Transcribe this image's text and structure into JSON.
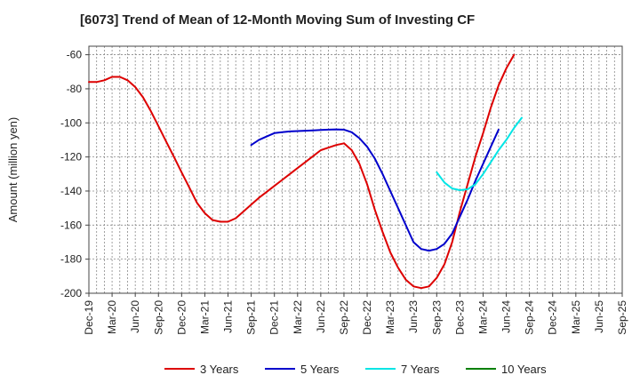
{
  "chart_data": {
    "type": "line",
    "title": "[6073]  Trend of Mean of 12-Month Moving Sum of Investing CF",
    "ylabel": "Amount (million yen)",
    "xlabel": "",
    "ylim": [
      -200,
      -55
    ],
    "yticks": [
      -60,
      -80,
      -100,
      -120,
      -140,
      -160,
      -180,
      -200
    ],
    "xlim": [
      0,
      69
    ],
    "grid": true,
    "legend_position": "bottom",
    "x_ticks": [
      {
        "i": 0,
        "label": "Dec-19"
      },
      {
        "i": 3,
        "label": "Mar-20"
      },
      {
        "i": 6,
        "label": "Jun-20"
      },
      {
        "i": 9,
        "label": "Sep-20"
      },
      {
        "i": 12,
        "label": "Dec-20"
      },
      {
        "i": 15,
        "label": "Mar-21"
      },
      {
        "i": 18,
        "label": "Jun-21"
      },
      {
        "i": 21,
        "label": "Sep-21"
      },
      {
        "i": 24,
        "label": "Dec-21"
      },
      {
        "i": 27,
        "label": "Mar-22"
      },
      {
        "i": 30,
        "label": "Jun-22"
      },
      {
        "i": 33,
        "label": "Sep-22"
      },
      {
        "i": 36,
        "label": "Dec-22"
      },
      {
        "i": 39,
        "label": "Mar-23"
      },
      {
        "i": 42,
        "label": "Jun-23"
      },
      {
        "i": 45,
        "label": "Sep-23"
      },
      {
        "i": 48,
        "label": "Dec-23"
      },
      {
        "i": 51,
        "label": "Mar-24"
      },
      {
        "i": 54,
        "label": "Jun-24"
      },
      {
        "i": 57,
        "label": "Sep-24"
      },
      {
        "i": 60,
        "label": "Dec-24"
      },
      {
        "i": 63,
        "label": "Mar-25"
      },
      {
        "i": 66,
        "label": "Jun-25"
      },
      {
        "i": 69,
        "label": "Sep-25"
      }
    ],
    "series": [
      {
        "name": "3 Years",
        "color": "#dd0000",
        "start_index": 0,
        "values": [
          -76,
          -76,
          -75,
          -73,
          -73,
          -75,
          -79,
          -85,
          -93,
          -102,
          -111,
          -120,
          -129,
          -138,
          -147,
          -153,
          -157,
          -158,
          -158,
          -156,
          -152,
          -148,
          -144,
          -140.5,
          -137,
          -133.5,
          -130,
          -126.5,
          -123,
          -119.5,
          -116,
          -114.5,
          -113,
          -112,
          -116,
          -124,
          -136,
          -151,
          -164,
          -176,
          -185,
          -192,
          -196,
          -197,
          -196,
          -191,
          -183,
          -170,
          -152,
          -136,
          -120,
          -106,
          -91,
          -78,
          -68,
          -60
        ]
      },
      {
        "name": "5 Years",
        "color": "#0000cc",
        "start_index": 21,
        "values": [
          -113,
          -110,
          -108,
          -106,
          -105.5,
          -105,
          -104.8,
          -104.6,
          -104.4,
          -104.2,
          -104,
          -103.8,
          -104,
          -105.5,
          -109,
          -114,
          -121,
          -130,
          -140,
          -150,
          -160,
          -170,
          -174,
          -175,
          -174,
          -171,
          -165,
          -155,
          -145,
          -134,
          -124,
          -114,
          -104
        ]
      },
      {
        "name": "7 Years",
        "color": "#00e5e5",
        "start_index": 45,
        "values": [
          -129,
          -135,
          -138.5,
          -139.5,
          -139,
          -136,
          -130,
          -123,
          -116,
          -110,
          -103,
          -97
        ]
      },
      {
        "name": "10 Years",
        "color": "#008000",
        "start_index": 0,
        "values": []
      }
    ]
  }
}
